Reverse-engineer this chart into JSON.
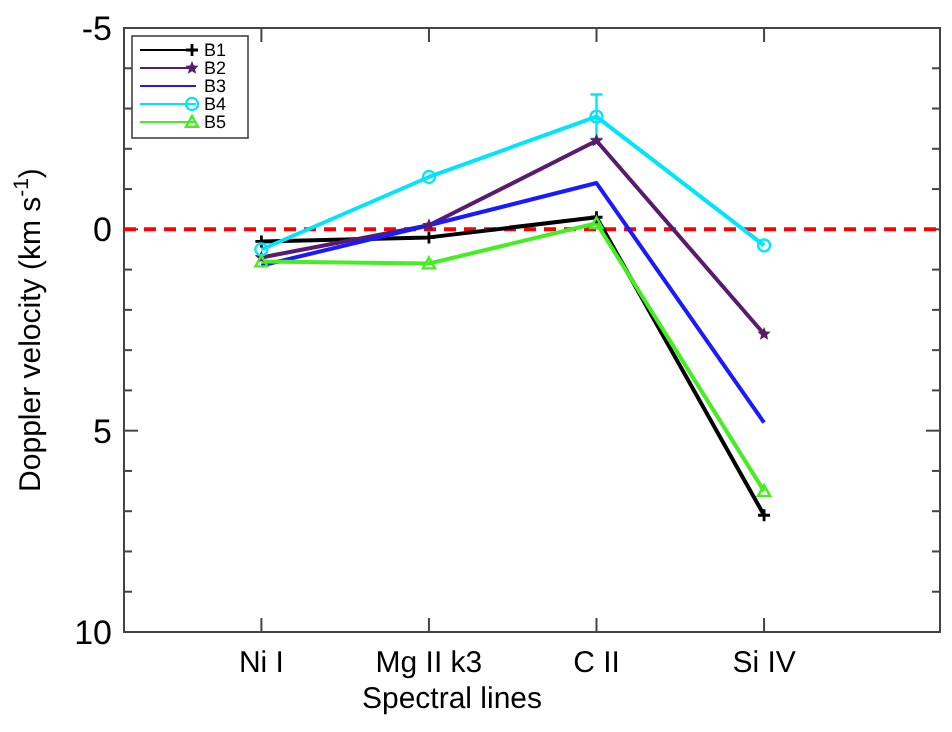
{
  "chart_data": {
    "type": "line",
    "xlabel": "Spectral lines",
    "ylabel": "Doppler velocity (km s$^{-1}$)",
    "categories": [
      "Ni I",
      "Mg II k3",
      "C II",
      "Si IV"
    ],
    "ylim": [
      10,
      -5
    ],
    "yticks": [
      -5,
      {
        "value": -4,
        "label": null
      },
      {
        "value": -3,
        "label": null
      },
      {
        "value": -2,
        "label": null
      },
      {
        "value": -1,
        "label": null
      },
      0,
      {
        "value": 1,
        "label": null
      },
      {
        "value": 2,
        "label": null
      },
      {
        "value": 3,
        "label": null
      },
      {
        "value": 4,
        "label": null
      },
      5,
      {
        "value": 6,
        "label": null
      },
      {
        "value": 7,
        "label": null
      },
      {
        "value": 8,
        "label": null
      },
      {
        "value": 9,
        "label": null
      },
      10
    ],
    "series": [
      {
        "name": "B1",
        "color": "#000000",
        "marker": "cross",
        "values": [
          0.3,
          0.2,
          -0.3,
          7.1
        ]
      },
      {
        "name": "B2",
        "color": "#5a1a6e",
        "marker": "star",
        "values": [
          0.7,
          -0.1,
          -2.2,
          2.6
        ]
      },
      {
        "name": "B3",
        "color": "#1a1aff",
        "marker": "none",
        "values": [
          0.9,
          -0.1,
          -1.15,
          4.8
        ]
      },
      {
        "name": "B4",
        "color": "#00e5ff",
        "marker": "circle",
        "values": [
          0.5,
          -1.3,
          -2.8,
          0.4
        ],
        "errors": [
          null,
          null,
          0.55,
          null
        ]
      },
      {
        "name": "B5",
        "color": "#44ee22",
        "marker": "triangle",
        "values": [
          0.8,
          0.85,
          -0.15,
          6.5
        ]
      }
    ],
    "ref_lines": [
      {
        "axis": "y",
        "value": 0,
        "color": "#ff0000",
        "line_style": "dashed"
      }
    ],
    "legend": "top left",
    "grid": false
  }
}
